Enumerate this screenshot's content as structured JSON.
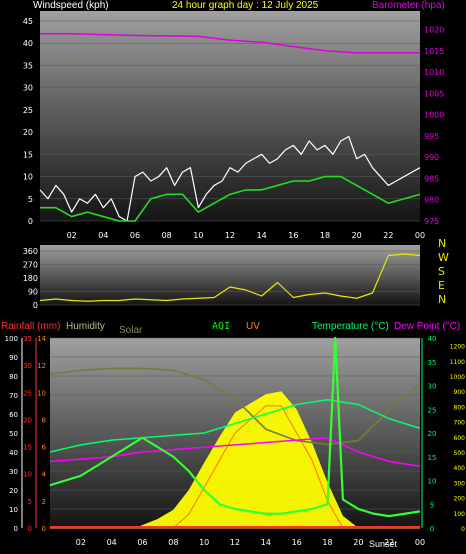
{
  "colors": {
    "background": "#000000",
    "plot_top": "#9a9a9a",
    "plot_bottom": "#1a1a1a",
    "wind_speed": "#ffffff",
    "wind_avg": "#22dd22",
    "barometer": "#e000e0",
    "direction": "#e8e800",
    "direction_avg": "#c8b400",
    "rain_axis": "#ff3030",
    "humidity": "#7a7a3a",
    "solar": "#ffff00",
    "uv": "#ff8800",
    "aqi": "#00dd00",
    "temperature": "#00ff66",
    "dew_point": "#ff00ff",
    "indoor_temp": "#33ff33"
  },
  "header": {
    "windspeed_label": "Windspeed (kph)",
    "title": "24 hour graph day : 12 July 2025",
    "barometer_label": "Barometer (hpa)"
  },
  "wind_panel": {
    "left_ticks": [
      "45",
      "40",
      "35",
      "30",
      "25",
      "20",
      "15",
      "10",
      "5",
      "0"
    ],
    "right_ticks": [
      "1020",
      "1015",
      "1010",
      "1005",
      "1000",
      "995",
      "990",
      "985",
      "980",
      "975"
    ],
    "x_ticks": [
      "02",
      "04",
      "06",
      "08",
      "10",
      "12",
      "14",
      "16",
      "18",
      "20",
      "22",
      "00"
    ]
  },
  "direction_panel": {
    "left_ticks": [
      "360",
      "270",
      "180",
      "90",
      "0"
    ],
    "compass": [
      "N",
      "W",
      "S",
      "E",
      "N"
    ]
  },
  "bottom_panel": {
    "labels": {
      "rainfall": "Rainfall (mm)",
      "humidity": "Humidity",
      "solar": "Solar",
      "aqi": "AQI",
      "uv": "UV",
      "temperature": "Temperature (°C)",
      "dew_point": "Dew Point (°C)"
    },
    "humidity_ticks": [
      "100",
      "90",
      "80",
      "70",
      "60",
      "50",
      "40",
      "30",
      "20",
      "10",
      "0"
    ],
    "rain_ticks": [
      "35",
      "30",
      "25",
      "20",
      "15",
      "10",
      "5",
      "0"
    ],
    "uv_ticks": [
      "14",
      "12",
      "10",
      "8",
      "6",
      "4",
      "2",
      "0"
    ],
    "temp_ticks": [
      "40",
      "35",
      "30",
      "25",
      "20",
      "15",
      "10",
      "5",
      "0"
    ],
    "solar_ticks": [
      "1200",
      "1100",
      "1000",
      "900",
      "800",
      "700",
      "600",
      "500",
      "400",
      "300",
      "200",
      "100",
      "0"
    ],
    "sun_marker": "Sunset",
    "x_ticks": [
      "02",
      "04",
      "06",
      "08",
      "10",
      "12",
      "14",
      "16",
      "18",
      "20",
      "22",
      "00"
    ]
  },
  "chart_data": [
    {
      "type": "line",
      "title": "24 hour graph day : 12 July 2025",
      "x_unit": "hour",
      "series": [
        {
          "name": "Windspeed (kph)",
          "axis": "left",
          "color": "#ffffff",
          "style": "gust",
          "x": [
            0,
            0.5,
            1,
            1.5,
            2,
            2.5,
            3,
            3.5,
            4,
            4.5,
            5,
            5.5,
            6,
            6.5,
            7,
            7.5,
            8,
            8.5,
            9,
            9.5,
            10,
            10.5,
            11,
            11.5,
            12,
            12.5,
            13,
            13.5,
            14,
            14.5,
            15,
            15.5,
            16,
            16.5,
            17,
            17.5,
            18,
            18.5,
            19,
            19.5,
            20,
            20.5,
            21,
            21.5,
            22,
            22.5,
            23,
            23.5,
            24
          ],
          "values": [
            7,
            5,
            8,
            6,
            2,
            5,
            4,
            6,
            3,
            5,
            1,
            0,
            10,
            11,
            9,
            10,
            12,
            8,
            11,
            12,
            3,
            6,
            8,
            9,
            12,
            11,
            13,
            14,
            15,
            13,
            14,
            16,
            17,
            15,
            18,
            16,
            17,
            15,
            18,
            19,
            14,
            15,
            12,
            10,
            8,
            9,
            10,
            11,
            12
          ]
        },
        {
          "name": "Average wind",
          "axis": "left",
          "color": "#22dd22",
          "style": "line",
          "x": [
            0,
            1,
            2,
            3,
            4,
            5,
            6,
            7,
            8,
            9,
            10,
            11,
            12,
            13,
            14,
            15,
            16,
            17,
            18,
            19,
            20,
            21,
            22,
            23,
            24
          ],
          "values": [
            3,
            3,
            1,
            2,
            1,
            0,
            0,
            5,
            6,
            6,
            2,
            4,
            6,
            7,
            7,
            8,
            9,
            9,
            10,
            10,
            8,
            6,
            4,
            5,
            6
          ]
        },
        {
          "name": "Barometer (hpa)",
          "axis": "right",
          "color": "#e000e0",
          "style": "line",
          "x": [
            0,
            2,
            4,
            6,
            8,
            10,
            12,
            14,
            16,
            18,
            20,
            22,
            24
          ],
          "values": [
            1019,
            1019,
            1018.8,
            1018.6,
            1018.5,
            1018.4,
            1017.5,
            1017,
            1016,
            1015,
            1014.5,
            1014.5,
            1014.5
          ]
        }
      ],
      "ylim": [
        0,
        45
      ],
      "y2lim": [
        975,
        1022
      ]
    },
    {
      "type": "line",
      "x_unit": "hour",
      "series": [
        {
          "name": "Direction",
          "axis": "left",
          "color": "#e8e800",
          "x": [
            0,
            1,
            2,
            3,
            4,
            5,
            6,
            7,
            8,
            9,
            10,
            11,
            12,
            13,
            14,
            15,
            16,
            17,
            18,
            19,
            20,
            21,
            22,
            23,
            24
          ],
          "values": [
            30,
            40,
            30,
            25,
            30,
            30,
            40,
            35,
            30,
            40,
            45,
            50,
            120,
            100,
            60,
            150,
            50,
            70,
            80,
            60,
            45,
            80,
            330,
            340,
            330
          ]
        }
      ],
      "ylim": [
        0,
        360
      ]
    },
    {
      "type": "line",
      "x_unit": "hour",
      "series": [
        {
          "name": "Humidity",
          "axis": "humidity",
          "color": "#7a7a3a",
          "x": [
            0,
            2,
            4,
            6,
            8,
            10,
            12,
            14,
            16,
            18,
            20,
            22,
            24
          ],
          "values": [
            81,
            83,
            84,
            84,
            83,
            78,
            68,
            52,
            46,
            44,
            46,
            62,
            76
          ]
        },
        {
          "name": "Solar",
          "axis": "solar",
          "color": "#ffff00",
          "x": [
            0,
            5.5,
            6,
            7,
            8,
            9,
            10,
            11,
            12,
            13,
            14,
            15,
            16,
            17,
            18,
            19,
            20,
            24
          ],
          "values": [
            0,
            0,
            20,
            60,
            120,
            250,
            430,
            600,
            760,
            820,
            880,
            900,
            780,
            560,
            300,
            80,
            0,
            0
          ]
        },
        {
          "name": "UV",
          "axis": "uv",
          "color": "#ff8800",
          "x": [
            0,
            8,
            9,
            10,
            11,
            12,
            13,
            14,
            15,
            16,
            17,
            18,
            19,
            24
          ],
          "values": [
            0,
            0,
            1,
            3,
            5,
            7,
            8,
            9,
            9,
            7,
            5,
            2,
            0,
            0
          ]
        },
        {
          "name": "Temperature (°C)",
          "axis": "temp",
          "color": "#00ff66",
          "x": [
            0,
            2,
            4,
            6,
            8,
            10,
            12,
            14,
            16,
            18,
            20,
            22,
            24
          ],
          "values": [
            16,
            17.5,
            18.5,
            19,
            19.5,
            20,
            22,
            24,
            26,
            27,
            26,
            23,
            21
          ]
        },
        {
          "name": "Dew Point (°C)",
          "axis": "temp",
          "color": "#ff00ff",
          "x": [
            0,
            2,
            4,
            6,
            8,
            10,
            12,
            14,
            16,
            18,
            20,
            22,
            24
          ],
          "values": [
            14,
            14.5,
            15,
            16,
            16.5,
            17,
            17.5,
            18,
            18.5,
            19,
            16,
            14,
            13
          ]
        },
        {
          "name": "Inside",
          "axis": "temp",
          "color": "#33ff33",
          "x": [
            0,
            1,
            2,
            3,
            4,
            5,
            6,
            7,
            8,
            9,
            10,
            11,
            12,
            13,
            14,
            15,
            16,
            17,
            18,
            18.5,
            19,
            20,
            21,
            22,
            23,
            24
          ],
          "values": [
            9,
            10,
            11,
            13,
            15,
            17,
            19,
            17,
            15,
            12,
            8,
            5,
            4,
            3.5,
            3,
            3,
            3.5,
            4,
            5,
            40,
            6,
            4,
            3,
            2.5,
            3,
            3.5
          ]
        }
      ],
      "ylims": {
        "humidity": [
          0,
          100
        ],
        "rain": [
          0,
          35
        ],
        "uv": [
          0,
          14
        ],
        "temp": [
          0,
          40
        ],
        "solar": [
          0,
          1250
        ]
      }
    }
  ]
}
